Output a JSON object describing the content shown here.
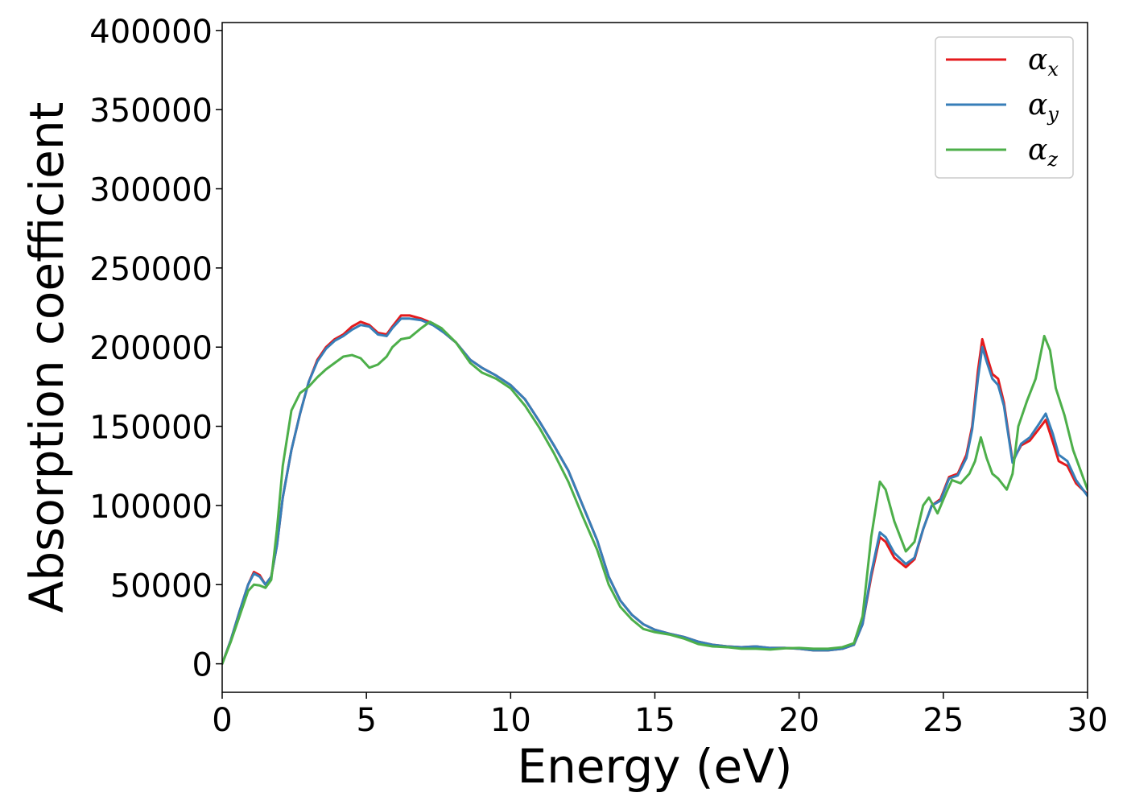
{
  "chart_data": {
    "type": "line",
    "xlabel": "Energy (eV)",
    "ylabel": "Absorption coefficient",
    "xlim": [
      0,
      30
    ],
    "ylim": [
      -18000,
      405000
    ],
    "x_ticks": [
      0,
      5,
      10,
      15,
      20,
      25,
      30
    ],
    "x_tick_labels": [
      "0",
      "5",
      "10",
      "15",
      "20",
      "25",
      "30"
    ],
    "y_ticks": [
      0,
      50000,
      100000,
      150000,
      200000,
      250000,
      300000,
      350000,
      400000
    ],
    "y_tick_labels": [
      "0",
      "50000",
      "100000",
      "150000",
      "200000",
      "250000",
      "300000",
      "350000",
      "400000"
    ],
    "grid": false,
    "legend_position": "top-right",
    "series": [
      {
        "name": "α",
        "name_sub": "x",
        "color": "#e41a1c",
        "points": [
          [
            0,
            0
          ],
          [
            0.3,
            15000
          ],
          [
            0.6,
            33000
          ],
          [
            0.9,
            50000
          ],
          [
            1.1,
            58000
          ],
          [
            1.3,
            56000
          ],
          [
            1.5,
            50000
          ],
          [
            1.7,
            55000
          ],
          [
            1.9,
            75000
          ],
          [
            2.1,
            105000
          ],
          [
            2.4,
            135000
          ],
          [
            2.7,
            158000
          ],
          [
            3.0,
            178000
          ],
          [
            3.3,
            192000
          ],
          [
            3.6,
            200000
          ],
          [
            3.9,
            205000
          ],
          [
            4.2,
            208000
          ],
          [
            4.5,
            213000
          ],
          [
            4.8,
            216000
          ],
          [
            5.1,
            214000
          ],
          [
            5.4,
            209000
          ],
          [
            5.7,
            208000
          ],
          [
            5.9,
            213000
          ],
          [
            6.2,
            220000
          ],
          [
            6.5,
            220000
          ],
          [
            6.9,
            218000
          ],
          [
            7.3,
            215000
          ],
          [
            7.7,
            209000
          ],
          [
            8.1,
            203000
          ],
          [
            8.6,
            192000
          ],
          [
            9.0,
            187000
          ],
          [
            9.5,
            182000
          ],
          [
            10.0,
            176000
          ],
          [
            10.5,
            167000
          ],
          [
            11.0,
            153000
          ],
          [
            11.5,
            138000
          ],
          [
            12.0,
            122000
          ],
          [
            12.5,
            100000
          ],
          [
            13.0,
            78000
          ],
          [
            13.4,
            55000
          ],
          [
            13.8,
            40000
          ],
          [
            14.2,
            31000
          ],
          [
            14.6,
            25000
          ],
          [
            15.0,
            21500
          ],
          [
            15.5,
            19000
          ],
          [
            16.0,
            17000
          ],
          [
            16.5,
            14000
          ],
          [
            17.0,
            12000
          ],
          [
            17.5,
            11000
          ],
          [
            18.0,
            10500
          ],
          [
            18.5,
            11000
          ],
          [
            19.0,
            10000
          ],
          [
            19.5,
            10000
          ],
          [
            20.0,
            9500
          ],
          [
            20.5,
            8500
          ],
          [
            21.0,
            8500
          ],
          [
            21.5,
            9500
          ],
          [
            21.9,
            12000
          ],
          [
            22.2,
            25000
          ],
          [
            22.5,
            55000
          ],
          [
            22.8,
            80000
          ],
          [
            23.0,
            77000
          ],
          [
            23.3,
            67000
          ],
          [
            23.7,
            61000
          ],
          [
            24.0,
            66000
          ],
          [
            24.3,
            85000
          ],
          [
            24.6,
            100000
          ],
          [
            24.9,
            104000
          ],
          [
            25.2,
            118000
          ],
          [
            25.5,
            120000
          ],
          [
            25.8,
            132000
          ],
          [
            26.0,
            150000
          ],
          [
            26.2,
            185000
          ],
          [
            26.35,
            205000
          ],
          [
            26.5,
            195000
          ],
          [
            26.7,
            183000
          ],
          [
            26.9,
            180000
          ],
          [
            27.1,
            165000
          ],
          [
            27.4,
            128000
          ],
          [
            27.7,
            138000
          ],
          [
            28.0,
            141000
          ],
          [
            28.3,
            148000
          ],
          [
            28.55,
            154000
          ],
          [
            28.8,
            140000
          ],
          [
            29.0,
            128000
          ],
          [
            29.3,
            125000
          ],
          [
            29.6,
            114000
          ],
          [
            30.0,
            107000
          ]
        ]
      },
      {
        "name": "α",
        "name_sub": "y",
        "color": "#377eb8",
        "points": [
          [
            0,
            0
          ],
          [
            0.3,
            15000
          ],
          [
            0.6,
            33000
          ],
          [
            0.9,
            50000
          ],
          [
            1.1,
            57000
          ],
          [
            1.3,
            55000
          ],
          [
            1.5,
            50000
          ],
          [
            1.7,
            55000
          ],
          [
            1.9,
            75000
          ],
          [
            2.1,
            105000
          ],
          [
            2.4,
            135000
          ],
          [
            2.7,
            158000
          ],
          [
            3.0,
            178000
          ],
          [
            3.3,
            191000
          ],
          [
            3.6,
            199000
          ],
          [
            3.9,
            204000
          ],
          [
            4.2,
            207000
          ],
          [
            4.5,
            211000
          ],
          [
            4.8,
            214000
          ],
          [
            5.1,
            213000
          ],
          [
            5.4,
            208000
          ],
          [
            5.7,
            207000
          ],
          [
            5.9,
            212000
          ],
          [
            6.2,
            218000
          ],
          [
            6.5,
            218000
          ],
          [
            6.9,
            217000
          ],
          [
            7.3,
            214000
          ],
          [
            7.7,
            209000
          ],
          [
            8.1,
            203000
          ],
          [
            8.6,
            192000
          ],
          [
            9.0,
            187000
          ],
          [
            9.5,
            182000
          ],
          [
            10.0,
            176000
          ],
          [
            10.5,
            167000
          ],
          [
            11.0,
            153000
          ],
          [
            11.5,
            138000
          ],
          [
            12.0,
            122000
          ],
          [
            12.5,
            100000
          ],
          [
            13.0,
            78000
          ],
          [
            13.4,
            55000
          ],
          [
            13.8,
            40000
          ],
          [
            14.2,
            31000
          ],
          [
            14.6,
            25000
          ],
          [
            15.0,
            21500
          ],
          [
            15.5,
            19000
          ],
          [
            16.0,
            17000
          ],
          [
            16.5,
            14000
          ],
          [
            17.0,
            12000
          ],
          [
            17.5,
            11000
          ],
          [
            18.0,
            10500
          ],
          [
            18.5,
            11000
          ],
          [
            19.0,
            10000
          ],
          [
            19.5,
            10000
          ],
          [
            20.0,
            9500
          ],
          [
            20.5,
            8500
          ],
          [
            21.0,
            8500
          ],
          [
            21.5,
            9500
          ],
          [
            21.9,
            12000
          ],
          [
            22.2,
            25000
          ],
          [
            22.5,
            57000
          ],
          [
            22.8,
            83000
          ],
          [
            23.0,
            80000
          ],
          [
            23.3,
            70000
          ],
          [
            23.7,
            63000
          ],
          [
            24.0,
            67000
          ],
          [
            24.3,
            85000
          ],
          [
            24.6,
            100000
          ],
          [
            24.9,
            103000
          ],
          [
            25.2,
            117000
          ],
          [
            25.5,
            119000
          ],
          [
            25.8,
            130000
          ],
          [
            26.0,
            148000
          ],
          [
            26.2,
            180000
          ],
          [
            26.35,
            200000
          ],
          [
            26.5,
            191000
          ],
          [
            26.7,
            180000
          ],
          [
            26.9,
            176000
          ],
          [
            27.1,
            163000
          ],
          [
            27.4,
            127000
          ],
          [
            27.7,
            139000
          ],
          [
            28.0,
            143000
          ],
          [
            28.3,
            151000
          ],
          [
            28.55,
            158000
          ],
          [
            28.8,
            145000
          ],
          [
            29.0,
            132000
          ],
          [
            29.3,
            128000
          ],
          [
            29.6,
            116000
          ],
          [
            30.0,
            106000
          ]
        ]
      },
      {
        "name": "α",
        "name_sub": "z",
        "color": "#4daf4a",
        "points": [
          [
            0,
            0
          ],
          [
            0.3,
            14000
          ],
          [
            0.6,
            30000
          ],
          [
            0.9,
            46000
          ],
          [
            1.1,
            50000
          ],
          [
            1.3,
            49500
          ],
          [
            1.5,
            48000
          ],
          [
            1.7,
            53000
          ],
          [
            1.9,
            85000
          ],
          [
            2.1,
            125000
          ],
          [
            2.4,
            160000
          ],
          [
            2.7,
            171000
          ],
          [
            3.0,
            175000
          ],
          [
            3.3,
            181000
          ],
          [
            3.6,
            186000
          ],
          [
            3.9,
            190000
          ],
          [
            4.2,
            194000
          ],
          [
            4.5,
            195000
          ],
          [
            4.8,
            193000
          ],
          [
            5.1,
            187000
          ],
          [
            5.4,
            189000
          ],
          [
            5.7,
            194000
          ],
          [
            5.9,
            200000
          ],
          [
            6.2,
            205000
          ],
          [
            6.5,
            206000
          ],
          [
            6.9,
            212000
          ],
          [
            7.2,
            216000
          ],
          [
            7.6,
            212000
          ],
          [
            8.1,
            203000
          ],
          [
            8.6,
            190000
          ],
          [
            9.0,
            184000
          ],
          [
            9.5,
            180000
          ],
          [
            10.0,
            174000
          ],
          [
            10.5,
            163000
          ],
          [
            11.0,
            149000
          ],
          [
            11.5,
            133000
          ],
          [
            12.0,
            115000
          ],
          [
            12.5,
            93000
          ],
          [
            13.0,
            72000
          ],
          [
            13.4,
            50000
          ],
          [
            13.8,
            36000
          ],
          [
            14.2,
            28000
          ],
          [
            14.6,
            22000
          ],
          [
            15.0,
            20000
          ],
          [
            15.5,
            18500
          ],
          [
            16.0,
            16000
          ],
          [
            16.5,
            12500
          ],
          [
            17.0,
            11000
          ],
          [
            17.5,
            10500
          ],
          [
            18.0,
            9500
          ],
          [
            18.5,
            9500
          ],
          [
            19.0,
            9000
          ],
          [
            19.5,
            9800
          ],
          [
            20.0,
            10000
          ],
          [
            20.5,
            9500
          ],
          [
            21.0,
            9500
          ],
          [
            21.5,
            10500
          ],
          [
            21.9,
            13000
          ],
          [
            22.2,
            30000
          ],
          [
            22.5,
            80000
          ],
          [
            22.8,
            115000
          ],
          [
            23.0,
            110000
          ],
          [
            23.3,
            90000
          ],
          [
            23.7,
            71000
          ],
          [
            24.0,
            77000
          ],
          [
            24.3,
            100000
          ],
          [
            24.5,
            105000
          ],
          [
            24.8,
            95000
          ],
          [
            25.1,
            108000
          ],
          [
            25.3,
            116000
          ],
          [
            25.6,
            114000
          ],
          [
            25.9,
            120000
          ],
          [
            26.1,
            128000
          ],
          [
            26.3,
            143000
          ],
          [
            26.5,
            130000
          ],
          [
            26.7,
            120000
          ],
          [
            26.9,
            117000
          ],
          [
            27.2,
            110000
          ],
          [
            27.4,
            120000
          ],
          [
            27.6,
            150000
          ],
          [
            27.9,
            166000
          ],
          [
            28.2,
            180000
          ],
          [
            28.5,
            207000
          ],
          [
            28.7,
            198000
          ],
          [
            28.9,
            174000
          ],
          [
            29.2,
            157000
          ],
          [
            29.5,
            135000
          ],
          [
            30.0,
            110000
          ]
        ]
      }
    ]
  }
}
